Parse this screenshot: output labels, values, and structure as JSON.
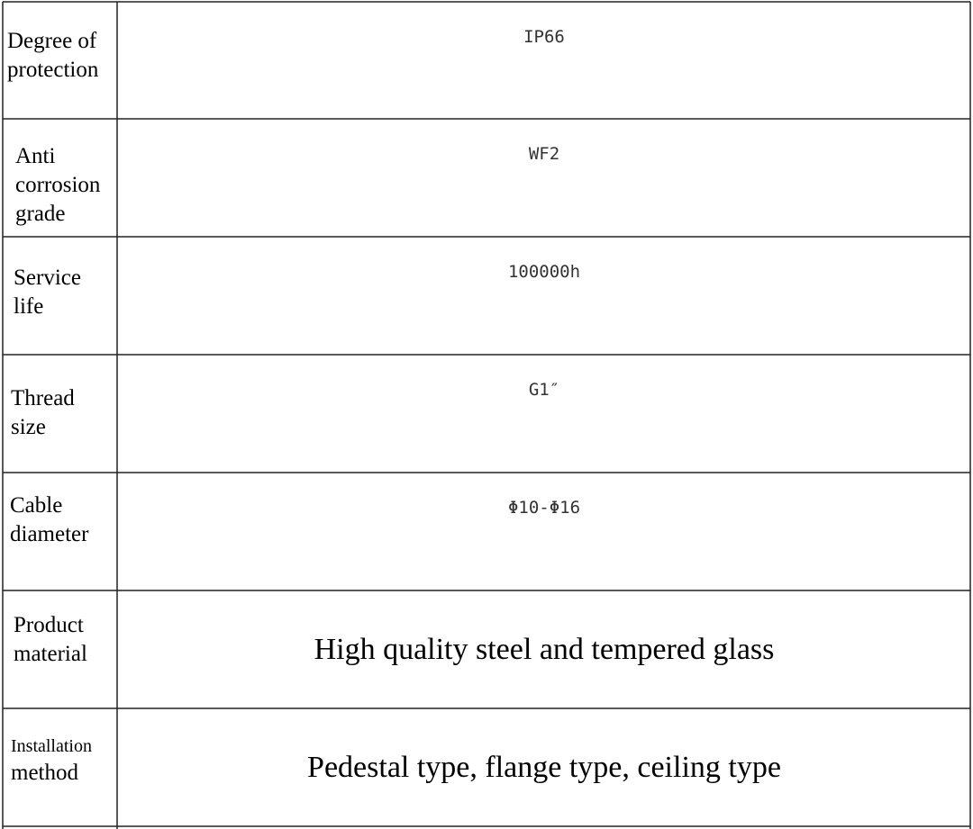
{
  "table": {
    "rows": [
      {
        "label": [
          "Degree of",
          "protection"
        ],
        "value": "IP66"
      },
      {
        "label": [
          "Anti",
          "corrosion",
          "grade"
        ],
        "value": "WF2"
      },
      {
        "label": [
          "Service",
          "life"
        ],
        "value": "100000h"
      },
      {
        "label": [
          "Thread",
          "size"
        ],
        "value": "G1″"
      },
      {
        "label": [
          "Cable",
          "diameter"
        ],
        "value": "Φ10-Φ16"
      },
      {
        "label": [
          "Product",
          "material"
        ],
        "value": "High quality steel and tempered glass"
      },
      {
        "label": [
          "Installation",
          "method"
        ],
        "value": "Pedestal type, flange type, ceiling type"
      }
    ]
  }
}
